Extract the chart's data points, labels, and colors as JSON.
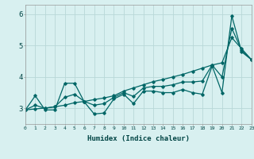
{
  "title": "",
  "xlabel": "Humidex (Indice chaleur)",
  "xlim": [
    0,
    23
  ],
  "ylim": [
    2.5,
    6.3
  ],
  "bg_color": "#d8f0f0",
  "grid_color": "#b8d8d8",
  "line_color": "#006666",
  "x": [
    0,
    1,
    2,
    3,
    4,
    5,
    6,
    7,
    8,
    9,
    10,
    11,
    12,
    13,
    14,
    15,
    16,
    17,
    18,
    19,
    20,
    21,
    22,
    23
  ],
  "line_jagged": [
    2.95,
    3.4,
    2.95,
    2.95,
    3.8,
    3.8,
    3.2,
    2.82,
    2.85,
    3.3,
    3.45,
    3.15,
    3.55,
    3.55,
    3.5,
    3.5,
    3.6,
    3.5,
    3.45,
    4.35,
    3.5,
    5.95,
    4.8,
    4.55
  ],
  "line_trend": [
    2.95,
    2.98,
    3.01,
    3.05,
    3.1,
    3.18,
    3.22,
    3.28,
    3.33,
    3.4,
    3.55,
    3.65,
    3.75,
    3.85,
    3.92,
    4.0,
    4.08,
    4.18,
    4.28,
    4.38,
    4.45,
    5.25,
    4.9,
    4.55
  ],
  "line_mid": [
    2.95,
    3.1,
    3.0,
    3.05,
    3.35,
    3.45,
    3.22,
    3.1,
    3.15,
    3.35,
    3.5,
    3.38,
    3.65,
    3.7,
    3.7,
    3.75,
    3.84,
    3.84,
    3.87,
    4.38,
    4.0,
    5.55,
    4.85,
    4.55
  ],
  "yticks": [
    3,
    4,
    5,
    6
  ],
  "xticks": [
    0,
    1,
    2,
    3,
    4,
    5,
    6,
    7,
    8,
    9,
    10,
    11,
    12,
    13,
    14,
    15,
    16,
    17,
    18,
    19,
    20,
    21,
    22,
    23
  ]
}
